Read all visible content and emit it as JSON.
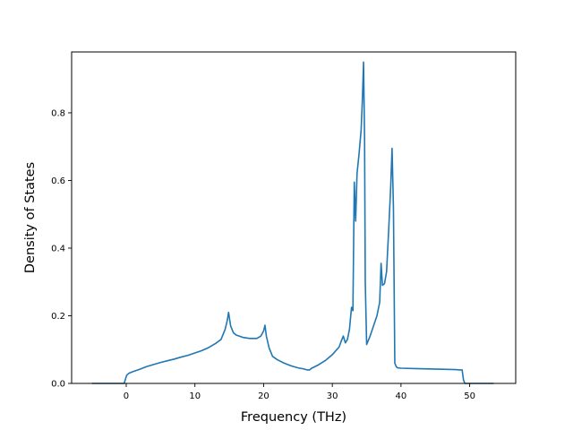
{
  "chart_data": {
    "type": "line",
    "title": "",
    "xlabel": "Frequency (THz)",
    "ylabel": "Density of States",
    "xlim": [
      -7.95,
      56.7
    ],
    "ylim": [
      0.0,
      0.98
    ],
    "xticks": [
      0,
      10,
      20,
      30,
      40,
      50
    ],
    "yticks": [
      0.0,
      0.2,
      0.4,
      0.6,
      0.8
    ],
    "xtick_labels": [
      "0",
      "10",
      "20",
      "30",
      "40",
      "50"
    ],
    "ytick_labels": [
      "0.0",
      "0.2",
      "0.4",
      "0.6",
      "0.8"
    ],
    "grid": false,
    "legend": null,
    "line_color": "#1f77b4",
    "series": [
      {
        "x": [
          -5.0,
          -0.3,
          0.0,
          0.1,
          0.4,
          1.0,
          2.0,
          3.0,
          4.0,
          5.0,
          6.0,
          7.0,
          8.0,
          9.0,
          10.0,
          11.0,
          12.0,
          13.0,
          13.8,
          14.4,
          14.7,
          14.9,
          15.2,
          15.6,
          16.0,
          17.0,
          18.0,
          19.0,
          19.6,
          20.0,
          20.2,
          20.4,
          20.8,
          21.3,
          22.0,
          23.0,
          24.0,
          25.0,
          25.8,
          26.3,
          26.7,
          27.0,
          28.0,
          29.0,
          30.0,
          31.0,
          31.3,
          31.6,
          31.9,
          32.2,
          32.5,
          32.8,
          33.0,
          33.2,
          33.4,
          33.6,
          33.9,
          34.2,
          34.4,
          34.55,
          34.7,
          34.8,
          35.0,
          35.5,
          36.0,
          36.5,
          36.9,
          37.1,
          37.3,
          37.6,
          37.9,
          38.2,
          38.5,
          38.7,
          38.9,
          39.1,
          39.3,
          39.5,
          40.0,
          42.0,
          44.0,
          46.0,
          48.0,
          48.5,
          48.9,
          49.1,
          49.3,
          50.0,
          53.5
        ],
        "y": [
          0.0,
          0.0,
          0.02,
          0.025,
          0.03,
          0.035,
          0.042,
          0.05,
          0.056,
          0.062,
          0.067,
          0.072,
          0.078,
          0.083,
          0.09,
          0.097,
          0.106,
          0.118,
          0.13,
          0.16,
          0.185,
          0.21,
          0.17,
          0.15,
          0.143,
          0.136,
          0.133,
          0.133,
          0.14,
          0.155,
          0.172,
          0.14,
          0.105,
          0.08,
          0.07,
          0.06,
          0.052,
          0.046,
          0.043,
          0.04,
          0.04,
          0.045,
          0.055,
          0.068,
          0.085,
          0.108,
          0.125,
          0.14,
          0.12,
          0.13,
          0.16,
          0.225,
          0.215,
          0.595,
          0.48,
          0.62,
          0.68,
          0.75,
          0.85,
          0.95,
          0.72,
          0.3,
          0.115,
          0.14,
          0.17,
          0.2,
          0.24,
          0.355,
          0.29,
          0.295,
          0.33,
          0.45,
          0.58,
          0.695,
          0.52,
          0.06,
          0.05,
          0.046,
          0.045,
          0.044,
          0.043,
          0.042,
          0.041,
          0.04,
          0.04,
          0.01,
          0.0,
          0.0,
          0.0
        ]
      }
    ]
  }
}
